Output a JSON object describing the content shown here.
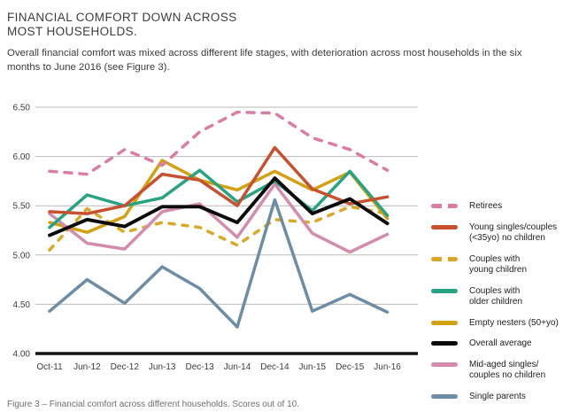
{
  "header": {
    "title": "FINANCIAL COMFORT DOWN ACROSS\nMOST HOUSEHOLDS.",
    "subtitle": "Overall financial comfort was mixed across different life stages, with deterioration across most households in the six months to June 2016 (see Figure 3)."
  },
  "caption": "Figure 3 – Financial comfort across different households. Scores out of 10.",
  "colors": {
    "grid": "#b9b9b9",
    "axis": "#141414",
    "text": "#3c3c3c"
  },
  "chart_data": {
    "type": "line",
    "title": "Financial comfort across different households",
    "categories": [
      "Oct-11",
      "Jun-12",
      "Dec-12",
      "Jun-13",
      "Dec-13",
      "Jun-14",
      "Dec-14",
      "Jun-15",
      "Dec-15",
      "Jun-16"
    ],
    "ylim": [
      4.0,
      6.5
    ],
    "yticks": [
      6.5,
      6.0,
      5.5,
      5.0,
      4.5,
      4.0
    ],
    "ytick_labels": [
      "6.50",
      "6.00",
      "5.50",
      "5.00",
      "4.50",
      "4.00"
    ],
    "grid": "horizontal",
    "legend_position": "right",
    "series": [
      {
        "name": "retirees",
        "legend_label": "Retirees",
        "color": "#d97da4",
        "dash": true,
        "values": [
          5.85,
          5.82,
          6.07,
          5.91,
          6.25,
          6.45,
          6.44,
          6.19,
          6.07,
          5.86
        ]
      },
      {
        "name": "young-singles-couples",
        "legend_label": "Young singles/couples\n(<35yo) no children",
        "color": "#c8502f",
        "dash": false,
        "values": [
          5.44,
          5.42,
          5.5,
          5.82,
          5.76,
          5.5,
          6.09,
          5.67,
          5.52,
          5.59
        ]
      },
      {
        "name": "couples-young-children",
        "legend_label": "Couples with\nyoung children",
        "color": "#d9a826",
        "dash": true,
        "values": [
          5.05,
          5.47,
          5.23,
          5.33,
          5.28,
          5.1,
          5.36,
          5.33,
          5.49,
          5.42
        ]
      },
      {
        "name": "couples-older-children",
        "legend_label": "Couples with\nolder children",
        "color": "#27a384",
        "dash": false,
        "values": [
          5.28,
          5.61,
          5.5,
          5.58,
          5.86,
          5.54,
          5.75,
          5.45,
          5.85,
          5.4
        ]
      },
      {
        "name": "empty-nesters",
        "legend_label": "Empty nesters (50+yo)",
        "color": "#d3a00e",
        "dash": false,
        "values": [
          5.33,
          5.23,
          5.39,
          5.96,
          5.76,
          5.66,
          5.85,
          5.66,
          5.84,
          5.37
        ]
      },
      {
        "name": "overall-average",
        "legend_label": "Overall average",
        "color": "#0b0b0b",
        "dash": false,
        "values": [
          5.2,
          5.36,
          5.29,
          5.49,
          5.49,
          5.33,
          5.78,
          5.42,
          5.57,
          5.32
        ]
      },
      {
        "name": "mid-aged-singles-couples",
        "legend_label": "Mid-aged singles/\ncouples no children",
        "color": "#d38cad",
        "dash": false,
        "values": [
          5.42,
          5.12,
          5.06,
          5.44,
          5.52,
          5.18,
          5.72,
          5.22,
          5.03,
          5.21
        ]
      },
      {
        "name": "single-parents",
        "legend_label": "Single parents",
        "color": "#6d8da6",
        "dash": false,
        "values": [
          4.43,
          4.75,
          4.51,
          4.88,
          4.66,
          4.27,
          5.56,
          4.43,
          4.6,
          4.42
        ]
      }
    ]
  }
}
